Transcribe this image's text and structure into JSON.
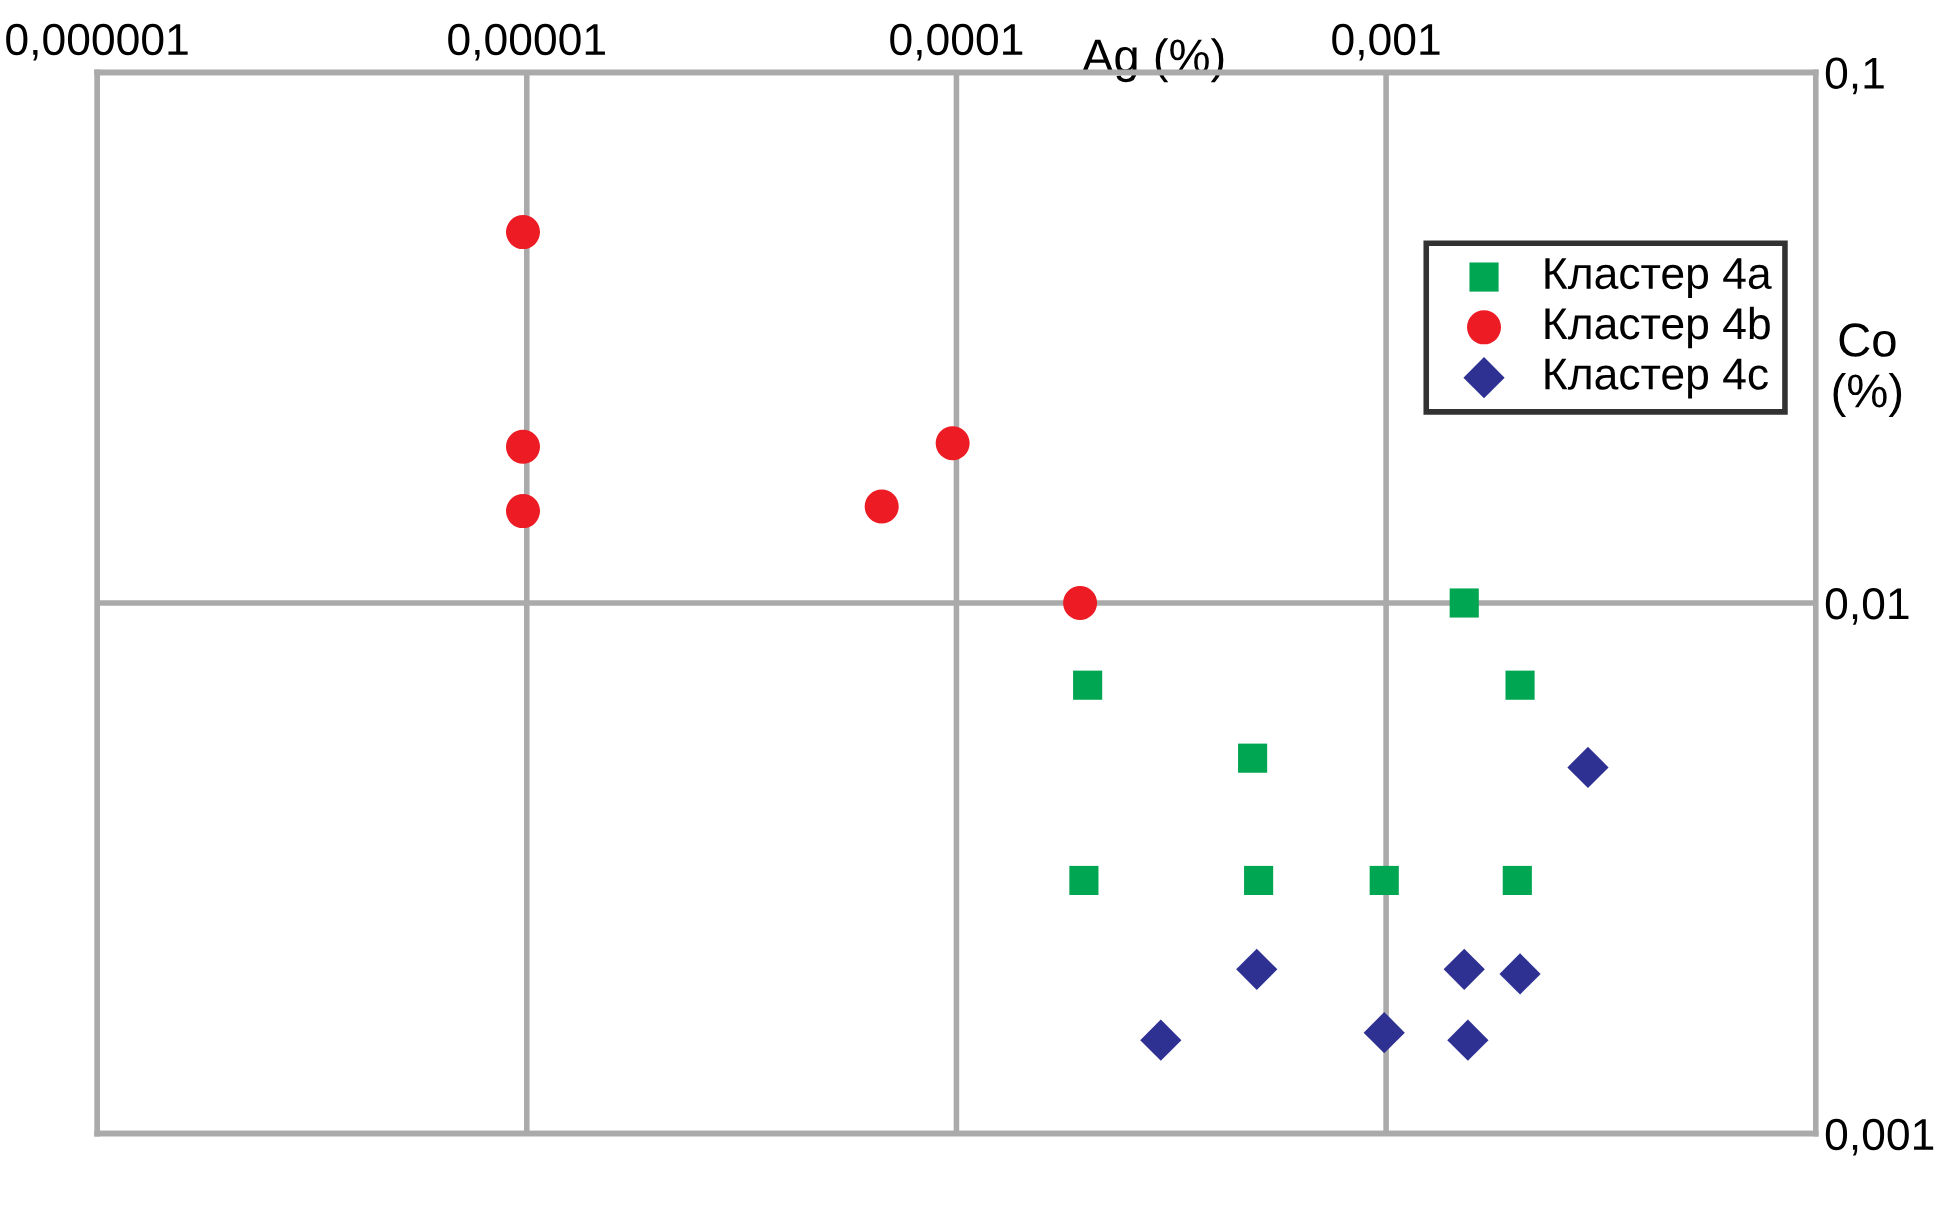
{
  "chart_data": {
    "type": "scatter",
    "xlabel": "Ag (%)",
    "ylabel": "Co\n(%)",
    "log": "xy",
    "grid": true,
    "legend": "top right",
    "xlim": [
      1e-06,
      0.01
    ],
    "xticks": [
      {
        "value": 1e-06,
        "label": "0,000001"
      },
      {
        "value": 1e-05,
        "label": "0,00001"
      },
      {
        "value": 0.0001,
        "label": "0,0001"
      },
      {
        "value": 0.001,
        "label": "0,001"
      },
      {
        "value": 0.01,
        "label": null
      }
    ],
    "ylim": [
      0.001,
      0.1
    ],
    "yticks": [
      {
        "value": 0.001,
        "label": "0,001"
      },
      {
        "value": 0.01,
        "label": "0,01"
      },
      {
        "value": 0.1,
        "label": "0,1"
      }
    ],
    "series": [
      {
        "name": "Кластер 4a",
        "color": "#00a651",
        "marker": "square",
        "x": [
          0.00152,
          0.000202,
          0.00205,
          0.000489,
          0.000198,
          0.000505,
          0.00099,
          0.00202
        ],
        "values": [
          0.01,
          0.007,
          0.007,
          0.0051,
          0.003,
          0.003,
          0.003,
          0.003
        ]
      },
      {
        "name": "Кластер 4b",
        "color": "#ed1c24",
        "marker": "circle",
        "x": [
          9.8e-06,
          9.8e-06,
          9.8e-06,
          9.8e-05,
          6.7e-05,
          0.000194
        ],
        "values": [
          0.05,
          0.0197,
          0.0149,
          0.02,
          0.0152,
          0.01
        ]
      },
      {
        "name": "Кластер 4c",
        "color": "#2e3192",
        "marker": "diamond",
        "x": [
          0.00295,
          0.0005,
          0.00152,
          0.00205,
          0.000299,
          0.00099,
          0.00155
        ],
        "values": [
          0.0049,
          0.00204,
          0.00204,
          0.002,
          0.0015,
          0.00155,
          0.0015
        ]
      }
    ]
  }
}
